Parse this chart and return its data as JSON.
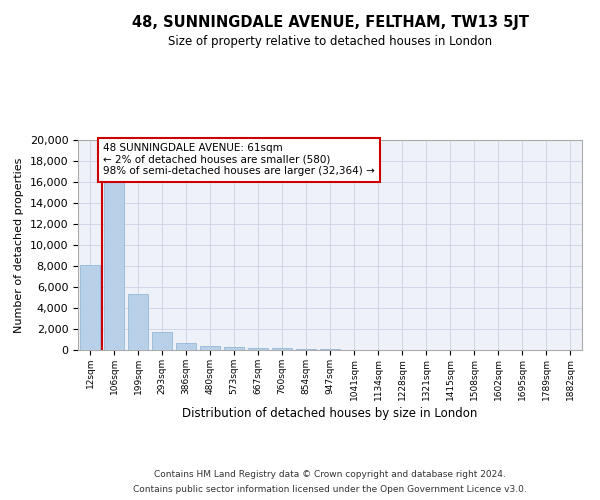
{
  "title": "48, SUNNINGDALE AVENUE, FELTHAM, TW13 5JT",
  "subtitle": "Size of property relative to detached houses in London",
  "xlabel": "Distribution of detached houses by size in London",
  "ylabel": "Number of detached properties",
  "bar_color": "#b8d0e8",
  "bar_edgecolor": "#8ab0d0",
  "categories": [
    "12sqm",
    "106sqm",
    "199sqm",
    "293sqm",
    "386sqm",
    "480sqm",
    "573sqm",
    "667sqm",
    "760sqm",
    "854sqm",
    "947sqm",
    "1041sqm",
    "1134sqm",
    "1228sqm",
    "1321sqm",
    "1415sqm",
    "1508sqm",
    "1602sqm",
    "1695sqm",
    "1789sqm",
    "1882sqm"
  ],
  "values": [
    8100,
    16600,
    5300,
    1750,
    700,
    350,
    280,
    200,
    150,
    80,
    50,
    30,
    20,
    15,
    10,
    8,
    5,
    4,
    3,
    2,
    1
  ],
  "vline_color": "#cc0000",
  "annotation_text": "48 SUNNINGDALE AVENUE: 61sqm\n← 2% of detached houses are smaller (580)\n98% of semi-detached houses are larger (32,364) →",
  "annotation_box_color": "#cc0000",
  "ylim": [
    0,
    20000
  ],
  "yticks": [
    0,
    2000,
    4000,
    6000,
    8000,
    10000,
    12000,
    14000,
    16000,
    18000,
    20000
  ],
  "footer_line1": "Contains HM Land Registry data © Crown copyright and database right 2024.",
  "footer_line2": "Contains public sector information licensed under the Open Government Licence v3.0.",
  "grid_color": "#d0d8e8",
  "background_color": "#eef2f8"
}
